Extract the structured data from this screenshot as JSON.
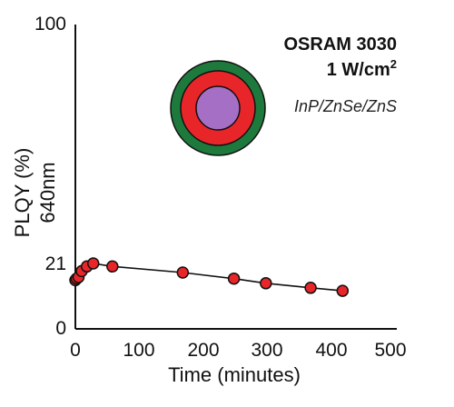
{
  "chart_data": {
    "type": "scatter",
    "xlabel": "Time (minutes)",
    "ylabel": "PLQY (%)",
    "ylabel2": "640nm",
    "xlim": [
      0,
      500
    ],
    "ylim": [
      0,
      100
    ],
    "xticks": [
      "0",
      "100",
      "200",
      "300",
      "400",
      "500"
    ],
    "yticks": [
      "0",
      "21",
      "100"
    ],
    "annotations": {
      "source": "OSRAM 3030",
      "power_prefix": "1 W/cm",
      "power_sup": "2",
      "material": "InP/ZnSe/ZnS"
    },
    "series": [
      {
        "x": [
          0,
          2,
          5,
          10,
          18,
          28,
          58,
          168,
          248,
          298,
          368,
          418
        ],
        "y": [
          16,
          16.5,
          17,
          19,
          20.5,
          21.5,
          20.5,
          18.5,
          16.5,
          15,
          13.5,
          12.5
        ],
        "marker_color": "#e8262a",
        "line_color": "#111111"
      }
    ],
    "grid": false,
    "legend": false
  },
  "colors": {
    "shell_outer": "#1e7a3c",
    "shell_middle": "#e8262a",
    "core": "#a46fc4"
  }
}
